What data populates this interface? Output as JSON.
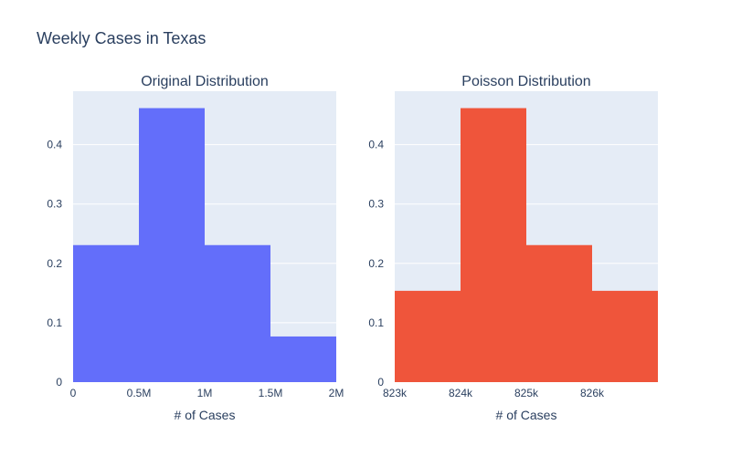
{
  "figure": {
    "title": "Weekly Cases in Texas"
  },
  "colors": {
    "plot_bg": "#e5ecf6",
    "grid": "#ffffff",
    "text": "#2a3f5f",
    "tick_text": "#2a3f5f"
  },
  "chart_data": [
    {
      "type": "bar",
      "title": "Original Distribution",
      "xlabel": "# of Cases",
      "ylabel": "",
      "color": "#636efa",
      "bins": [
        {
          "start": 0,
          "end": 500000,
          "value": 0.2308
        },
        {
          "start": 500000,
          "end": 1000000,
          "value": 0.4615
        },
        {
          "start": 1000000,
          "end": 1500000,
          "value": 0.2308
        },
        {
          "start": 1500000,
          "end": 2000000,
          "value": 0.0769
        }
      ],
      "xlim": [
        0,
        2000000
      ],
      "ylim": [
        0,
        0.49
      ],
      "xticks": [
        {
          "value": 0,
          "label": "0"
        },
        {
          "value": 500000,
          "label": "0.5M"
        },
        {
          "value": 1000000,
          "label": "1M"
        },
        {
          "value": 1500000,
          "label": "1.5M"
        },
        {
          "value": 2000000,
          "label": "2M"
        }
      ],
      "yticks": [
        {
          "value": 0,
          "label": "0"
        },
        {
          "value": 0.1,
          "label": "0.1"
        },
        {
          "value": 0.2,
          "label": "0.2"
        },
        {
          "value": 0.3,
          "label": "0.3"
        },
        {
          "value": 0.4,
          "label": "0.4"
        }
      ],
      "grid": true
    },
    {
      "type": "bar",
      "title": "Poisson Distribution",
      "xlabel": "# of Cases",
      "ylabel": "",
      "color": "#ef553b",
      "bins": [
        {
          "start": 823000,
          "end": 824000,
          "value": 0.1538
        },
        {
          "start": 824000,
          "end": 825000,
          "value": 0.4615
        },
        {
          "start": 825000,
          "end": 826000,
          "value": 0.2308
        },
        {
          "start": 826000,
          "end": 827000,
          "value": 0.1538
        }
      ],
      "xlim": [
        823000,
        827000
      ],
      "ylim": [
        0,
        0.49
      ],
      "xticks": [
        {
          "value": 823000,
          "label": "823k"
        },
        {
          "value": 824000,
          "label": "824k"
        },
        {
          "value": 825000,
          "label": "825k"
        },
        {
          "value": 826000,
          "label": "826k"
        }
      ],
      "yticks": [
        {
          "value": 0,
          "label": "0"
        },
        {
          "value": 0.1,
          "label": "0.1"
        },
        {
          "value": 0.2,
          "label": "0.2"
        },
        {
          "value": 0.3,
          "label": "0.3"
        },
        {
          "value": 0.4,
          "label": "0.4"
        }
      ],
      "grid": true
    }
  ]
}
